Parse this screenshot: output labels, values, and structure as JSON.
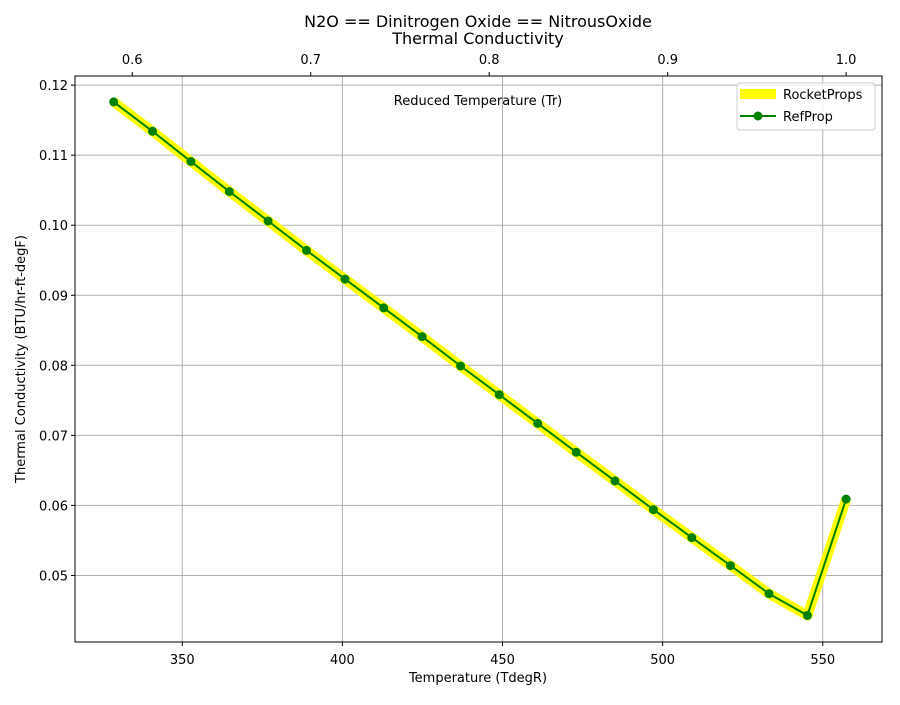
{
  "chart_data": {
    "type": "line",
    "title": "N2O == Dinitrogen Oxide == NitrousOxide",
    "subtitle": "Thermal Conductivity",
    "xlabel": "Temperature (TdegR)",
    "ylabel": "Thermal Conductivity (BTU/hr-ft-degF)",
    "top_xlabel": "Reduced Temperature (Tr)",
    "xlim": [
      316.5,
      568.5
    ],
    "ylim": [
      0.0405,
      0.1213
    ],
    "x_ticks": [
      350,
      400,
      450,
      500,
      550
    ],
    "x_tick_labels": [
      "350",
      "400",
      "450",
      "500",
      "550"
    ],
    "y_ticks": [
      0.05,
      0.06,
      0.07,
      0.08,
      0.09,
      0.1,
      0.11,
      0.12
    ],
    "y_tick_labels": [
      "0.05",
      "0.06",
      "0.07",
      "0.08",
      "0.09",
      "0.10",
      "0.11",
      "0.12"
    ],
    "top_x_ticks_tr": [
      0.6,
      0.7,
      0.8,
      0.9,
      1.0
    ],
    "top_x_tick_labels": [
      "0.6",
      "0.7",
      "0.8",
      "0.9",
      "1.0"
    ],
    "grid": true,
    "legend_position": "top-right",
    "x": [
      328.6,
      340.7,
      352.7,
      364.7,
      376.8,
      388.8,
      400.8,
      412.9,
      424.9,
      436.9,
      449.0,
      461.0,
      473.0,
      485.1,
      497.1,
      509.1,
      521.2,
      533.2,
      545.2,
      557.3
    ],
    "series": [
      {
        "name": "RocketProps",
        "style": "thick-line",
        "color": "#ffff00",
        "values": [
          0.1176,
          0.1134,
          0.1091,
          0.1048,
          0.1006,
          0.0964,
          0.0923,
          0.0882,
          0.0841,
          0.0799,
          0.0758,
          0.0717,
          0.0676,
          0.0635,
          0.0594,
          0.0554,
          0.0514,
          0.0474,
          0.0443,
          0.0609
        ]
      },
      {
        "name": "RefProp",
        "style": "line-with-markers",
        "color": "#008000",
        "values": [
          0.1176,
          0.1134,
          0.1091,
          0.1048,
          0.1006,
          0.0964,
          0.0923,
          0.0882,
          0.0841,
          0.0799,
          0.0758,
          0.0717,
          0.0676,
          0.0635,
          0.0594,
          0.0554,
          0.0514,
          0.0474,
          0.0443,
          0.0609
        ]
      }
    ]
  }
}
